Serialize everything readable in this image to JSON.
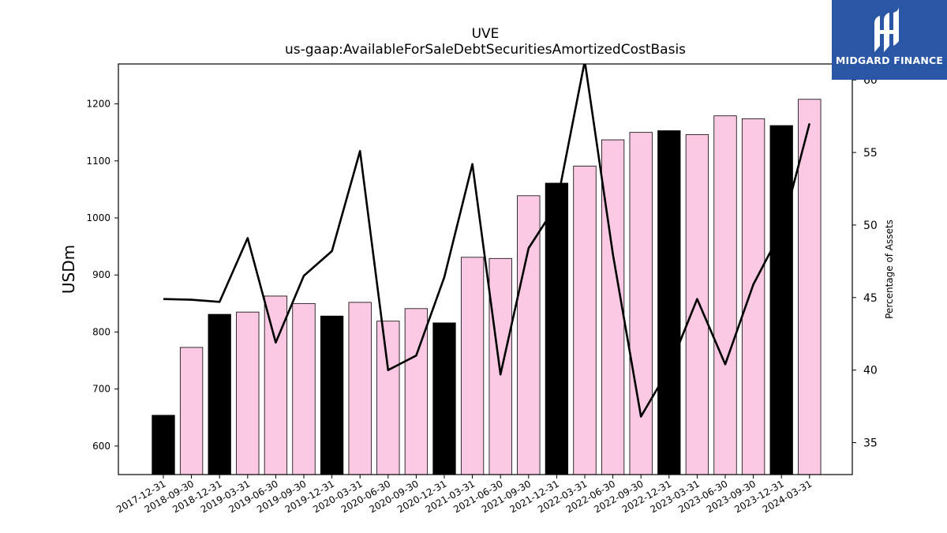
{
  "logo": {
    "text": "MIDGARD FINANCE",
    "color": "#2a56a6"
  },
  "chart_data": {
    "type": "bar",
    "title": "UVE",
    "subtitle": "us-gaap:AvailableForSaleDebtSecuritiesAmortizedCostBasis",
    "ylabel": "USDm",
    "y2label": "Percentage of Assets",
    "ylim": [
      550,
      1270
    ],
    "y2lim": [
      32.8,
      61.1
    ],
    "yticks": [
      600,
      700,
      800,
      900,
      1000,
      1100,
      1200
    ],
    "y2ticks": [
      35,
      40,
      45,
      50,
      55,
      60
    ],
    "categories": [
      "2017-12-31",
      "2018-09-30",
      "2018-12-31",
      "2019-03-31",
      "2019-06-30",
      "2019-09-30",
      "2019-12-31",
      "2020-03-31",
      "2020-06-30",
      "2020-09-30",
      "2020-12-31",
      "2021-03-31",
      "2021-06-30",
      "2021-09-30",
      "2021-12-31",
      "2022-03-31",
      "2022-06-30",
      "2022-09-30",
      "2022-12-31",
      "2023-03-31",
      "2023-06-30",
      "2023-09-30",
      "2023-12-31",
      "2024-03-31"
    ],
    "series": [
      {
        "type": "bar",
        "values": [
          654,
          773,
          831,
          835,
          863,
          850,
          828,
          852,
          819,
          841,
          816,
          931,
          929,
          1039,
          1061,
          1091,
          1137,
          1150,
          1153,
          1146,
          1179,
          1174,
          1162,
          1208
        ],
        "colors": [
          "#000000",
          "#fbc9e4",
          "#000000",
          "#fbc9e4",
          "#fbc9e4",
          "#fbc9e4",
          "#000000",
          "#fbc9e4",
          "#fbc9e4",
          "#fbc9e4",
          "#000000",
          "#fbc9e4",
          "#fbc9e4",
          "#fbc9e4",
          "#000000",
          "#fbc9e4",
          "#fbc9e4",
          "#fbc9e4",
          "#000000",
          "#fbc9e4",
          "#fbc9e4",
          "#fbc9e4",
          "#000000",
          "#fbc9e4"
        ]
      },
      {
        "type": "line",
        "axis": "right",
        "color": "#000000",
        "values": [
          44.9,
          44.85,
          44.7,
          49.1,
          41.9,
          46.5,
          48.2,
          55.1,
          40.0,
          41.0,
          46.4,
          54.2,
          39.7,
          48.4,
          51.4,
          61.3,
          48.0,
          36.8,
          40.1,
          44.9,
          40.4,
          45.9,
          49.6,
          57.0
        ]
      }
    ],
    "grid": false,
    "legend": "none"
  }
}
